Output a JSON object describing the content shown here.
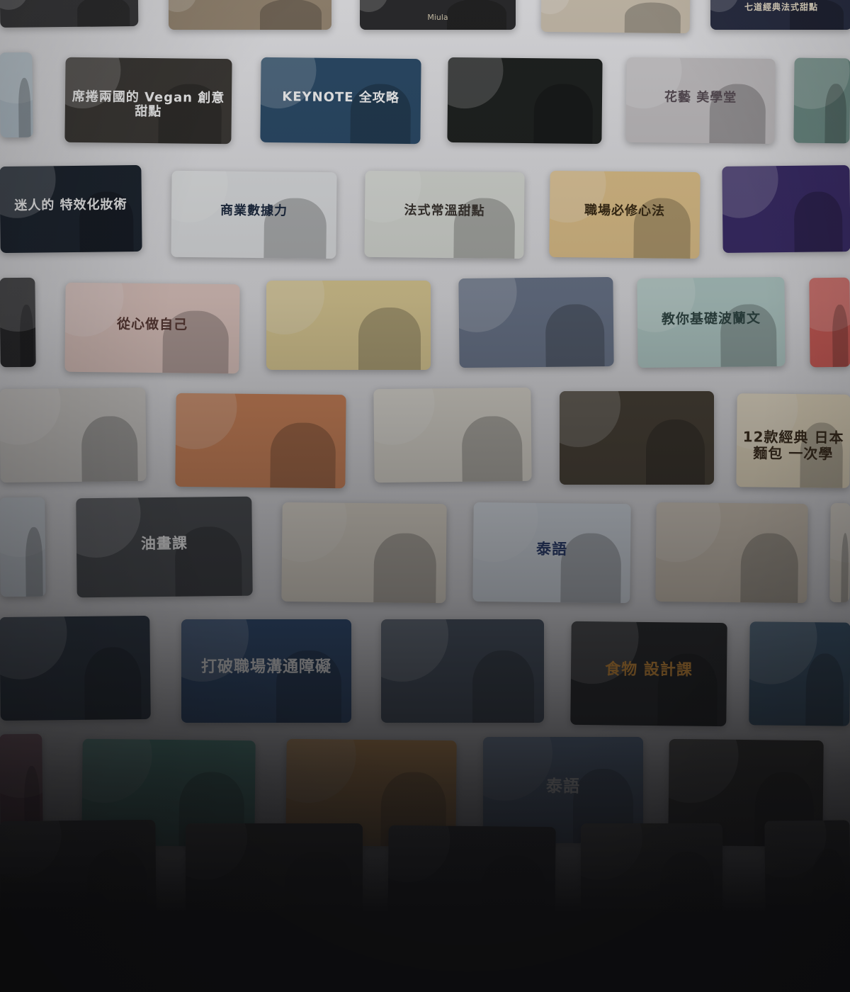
{
  "colors": {
    "background": "#0e0e10",
    "wall": "#e4e4e8"
  },
  "cards": [
    {
      "row": 0,
      "bg": "#3a3a3c",
      "fg": "#ffffff",
      "title": "",
      "sub": ""
    },
    {
      "row": 0,
      "bg": "#9a8a75",
      "fg": "#ffffff",
      "title": "",
      "sub": ""
    },
    {
      "row": 0,
      "bg": "#2c2c2e",
      "fg": "#f2e6c8",
      "title": "",
      "sub": "Miula"
    },
    {
      "row": 0,
      "bg": "#cfc4b2",
      "fg": "#3b3128",
      "title": "",
      "sub": ""
    },
    {
      "row": 0,
      "bg": "#2a2f45",
      "fg": "#f0e6d0",
      "title": "七道經典法式甜點",
      "sub": ""
    },
    {
      "row": 1,
      "bg": "#b9c7d1",
      "fg": "#2a3b4c",
      "title": "",
      "sub": ""
    },
    {
      "row": 1,
      "bg": "#3d3a36",
      "fg": "#ffffff",
      "title": "席捲兩國的 Vegan 創意甜點",
      "sub": ""
    },
    {
      "row": 1,
      "bg": "#2c4d6b",
      "fg": "#ffffff",
      "title": "KEYNOTE 全攻略",
      "sub": ""
    },
    {
      "row": 1,
      "bg": "#1f2220",
      "fg": "#e8d9b0",
      "title": "",
      "sub": ""
    },
    {
      "row": 1,
      "bg": "#c9c6c8",
      "fg": "#5a4f57",
      "title": "花藝 美學堂",
      "sub": ""
    },
    {
      "row": 1,
      "bg": "#6f8f88",
      "fg": "#ffffff",
      "title": "",
      "sub": ""
    },
    {
      "row": 2,
      "bg": "#1d2530",
      "fg": "#ffffff",
      "title": "迷人的 特效化妝術",
      "sub": ""
    },
    {
      "row": 2,
      "bg": "#e6e8ea",
      "fg": "#1c2a40",
      "title": "商業數據力",
      "sub": ""
    },
    {
      "row": 2,
      "bg": "#dfe2dc",
      "fg": "#3b3530",
      "title": "法式常溫甜點",
      "sub": ""
    },
    {
      "row": 2,
      "bg": "#e8c98f",
      "fg": "#3a2b14",
      "title": "職場必修心法",
      "sub": ""
    },
    {
      "row": 2,
      "bg": "#3b2c6b",
      "fg": "#ffffff",
      "title": "",
      "sub": ""
    },
    {
      "row": 3,
      "bg": "#2a2a2c",
      "fg": "#ffffff",
      "title": "",
      "sub": ""
    },
    {
      "row": 3,
      "bg": "#e9cfc8",
      "fg": "#5b3a34",
      "title": "從心做自己",
      "sub": ""
    },
    {
      "row": 3,
      "bg": "#e6d49a",
      "fg": "#2a3550",
      "title": "",
      "sub": ""
    },
    {
      "row": 3,
      "bg": "#6e7a90",
      "fg": "#ffffff",
      "title": "",
      "sub": ""
    },
    {
      "row": 3,
      "bg": "#b9d3cf",
      "fg": "#2f4744",
      "title": "教你基礎波蘭文",
      "sub": ""
    },
    {
      "row": 3,
      "bg": "#d8605a",
      "fg": "#ffffff",
      "title": "",
      "sub": ""
    },
    {
      "row": 4,
      "bg": "#d9d6d2",
      "fg": "#4a3f38",
      "title": "",
      "sub": ""
    },
    {
      "row": 4,
      "bg": "#d98a5c",
      "fg": "#ffffff",
      "title": "",
      "sub": ""
    },
    {
      "row": 4,
      "bg": "#e6e2d8",
      "fg": "#7a4b2c",
      "title": "",
      "sub": ""
    },
    {
      "row": 4,
      "bg": "#4a4236",
      "fg": "#f2e6cc",
      "title": "",
      "sub": ""
    },
    {
      "row": 4,
      "bg": "#efe3c8",
      "fg": "#3a2b1a",
      "title": "12款經典 日本麵包 一次學",
      "sub": ""
    },
    {
      "row": 5,
      "bg": "#cfd6de",
      "fg": "#2a3444",
      "title": "",
      "sub": ""
    },
    {
      "row": 5,
      "bg": "#4b4e52",
      "fg": "#ffffff",
      "title": "油畫課",
      "sub": ""
    },
    {
      "row": 5,
      "bg": "#e8e1d4",
      "fg": "#3a2e20",
      "title": "",
      "sub": ""
    },
    {
      "row": 5,
      "bg": "#dfe6ee",
      "fg": "#263a6e",
      "title": "泰語",
      "sub": ""
    },
    {
      "row": 5,
      "bg": "#d8cdbd",
      "fg": "#3a3026",
      "title": "",
      "sub": ""
    },
    {
      "row": 5,
      "bg": "#e6dfd2",
      "fg": "#3a2e20",
      "title": "",
      "sub": ""
    },
    {
      "row": 6,
      "bg": "#2f3a48",
      "fg": "#ffffff",
      "title": "",
      "sub": ""
    },
    {
      "row": 6,
      "bg": "#2f4f7a",
      "fg": "#ffffff",
      "title": "打破職場溝通障礙",
      "sub": ""
    },
    {
      "row": 6,
      "bg": "#4a5666",
      "fg": "#ffffff",
      "title": "",
      "sub": ""
    },
    {
      "row": 6,
      "bg": "#26282a",
      "fg": "#f0a23a",
      "title": "食物 設計課",
      "sub": ""
    },
    {
      "row": 6,
      "bg": "#3f5e7a",
      "fg": "#ffffff",
      "title": "",
      "sub": ""
    },
    {
      "row": 7,
      "bg": "#8a5a6a",
      "fg": "#ffffff",
      "title": "",
      "sub": ""
    },
    {
      "row": 7,
      "bg": "#5fa79a",
      "fg": "#ffffff",
      "title": "",
      "sub": ""
    },
    {
      "row": 7,
      "bg": "#e3a45a",
      "fg": "#1f3a6a",
      "title": "",
      "sub": ""
    },
    {
      "row": 7,
      "bg": "#6c86a8",
      "fg": "#ffffff",
      "title": "泰語",
      "sub": ""
    },
    {
      "row": 7,
      "bg": "#3b3a36",
      "fg": "#e8a43a",
      "title": "",
      "sub": ""
    },
    {
      "row": 8,
      "bg": "#4a4a4c",
      "fg": "#ffffff",
      "title": "",
      "sub": ""
    },
    {
      "row": 8,
      "bg": "#3f3e3a",
      "fg": "#ffffff",
      "title": "",
      "sub": ""
    },
    {
      "row": 8,
      "bg": "#35363a",
      "fg": "#ffffff",
      "title": "",
      "sub": ""
    },
    {
      "row": 8,
      "bg": "#5a5a56",
      "fg": "#ffffff",
      "title": "",
      "sub": ""
    },
    {
      "row": 8,
      "bg": "#4a4a48",
      "fg": "#ffffff",
      "title": "",
      "sub": ""
    }
  ]
}
